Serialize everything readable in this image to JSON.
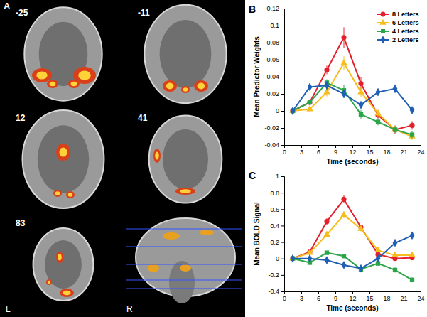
{
  "panel_a": {
    "label": "A",
    "slices": [
      -25,
      -11,
      12,
      41,
      83
    ],
    "left": "L",
    "right": "R"
  },
  "chart_data": [
    {
      "type": "line",
      "label": "B",
      "y_label": "Mean Predictor Weights",
      "x_label": "Time (seconds)",
      "x": [
        1.5,
        4.5,
        7.5,
        10.5,
        13.5,
        16.5,
        19.5,
        22.5
      ],
      "xlim": [
        0,
        24
      ],
      "xticks": [
        0,
        3,
        6,
        9,
        12,
        15,
        18,
        21,
        24
      ],
      "ylim": [
        -0.04,
        0.12
      ],
      "yticks": [
        -0.04,
        -0.02,
        0,
        0.02,
        0.04,
        0.06,
        0.08,
        0.1,
        0.12
      ],
      "legend": "upper right",
      "series": [
        {
          "name": "8 Letters",
          "color": "#e3202b",
          "marker": "circle",
          "values": [
            0,
            0.01,
            0.048,
            0.086,
            0.032,
            -0.005,
            -0.022,
            -0.017
          ],
          "errors": [
            0,
            0.003,
            0.005,
            0.012,
            0.008,
            0.004,
            0.005,
            0.005
          ]
        },
        {
          "name": "6 Letters",
          "color": "#f7bc1e",
          "marker": "triangle",
          "values": [
            0,
            0.002,
            0.022,
            0.056,
            0.022,
            -0.003,
            -0.022,
            -0.03
          ],
          "errors": [
            0,
            0.003,
            0.005,
            0.008,
            0.006,
            0.004,
            0.004,
            0.004
          ]
        },
        {
          "name": "4 Letters",
          "color": "#2ca54a",
          "marker": "square",
          "values": [
            0,
            0.01,
            0.033,
            0.024,
            -0.004,
            -0.013,
            -0.022,
            -0.028
          ],
          "errors": [
            0,
            0.003,
            0.004,
            0.006,
            0.005,
            0.004,
            0.004,
            0.004
          ]
        },
        {
          "name": "2 Letters",
          "color": "#1f5fb4",
          "marker": "diamond",
          "values": [
            0,
            0.028,
            0.03,
            0.02,
            0.007,
            0.022,
            0.026,
            0.001
          ],
          "errors": [
            0,
            0.004,
            0.005,
            0.005,
            0.004,
            0.004,
            0.005,
            0.004
          ]
        }
      ]
    },
    {
      "type": "line",
      "label": "C",
      "y_label": "Mean BOLD Signal",
      "x_label": "Time (seconds)",
      "x": [
        1.5,
        4.5,
        7.5,
        10.5,
        13.5,
        16.5,
        19.5,
        22.5
      ],
      "xlim": [
        0,
        24
      ],
      "xticks": [
        0,
        3,
        6,
        9,
        12,
        15,
        18,
        21,
        24
      ],
      "ylim": [
        -0.4,
        1
      ],
      "yticks": [
        -0.4,
        -0.2,
        0,
        0.2,
        0.4,
        0.6,
        0.8,
        1
      ],
      "series": [
        {
          "color": "#e3202b",
          "marker": "circle",
          "values": [
            0,
            0.08,
            0.45,
            0.72,
            0.38,
            0.05,
            0,
            0.01
          ],
          "errors": [
            0,
            0.02,
            0.04,
            0.05,
            0.03,
            0.02,
            0.02,
            0.02
          ]
        },
        {
          "color": "#f7bc1e",
          "marker": "triangle",
          "values": [
            0,
            0.07,
            0.29,
            0.53,
            0.36,
            0.1,
            0.04,
            0.04
          ],
          "errors": [
            0,
            0.02,
            0.03,
            0.04,
            0.03,
            0.02,
            0.02,
            0.02
          ]
        },
        {
          "color": "#2ca54a",
          "marker": "square",
          "values": [
            0,
            -0.05,
            0.07,
            0.03,
            -0.13,
            -0.06,
            -0.14,
            -0.26
          ],
          "errors": [
            0,
            0.02,
            0.02,
            0.02,
            0.03,
            0.02,
            0.03,
            0.03
          ]
        },
        {
          "color": "#1f5fb4",
          "marker": "diamond",
          "values": [
            0,
            0,
            -0.02,
            -0.08,
            -0.12,
            0,
            0.19,
            0.28
          ],
          "errors": [
            0,
            0.02,
            0.02,
            0.02,
            0.03,
            0.02,
            0.03,
            0.03
          ]
        }
      ]
    }
  ]
}
